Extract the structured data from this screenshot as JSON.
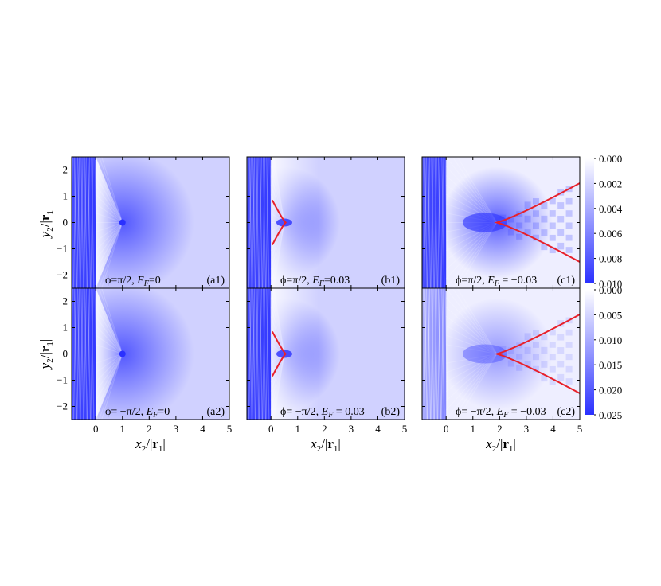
{
  "colormap": {
    "low": "#ffffff",
    "high": "#2a30ff"
  },
  "shared_axes": {
    "x_ticks": [
      "0",
      "1",
      "2",
      "3",
      "4",
      "5"
    ],
    "y_ticks": [
      "-2",
      "-1",
      "0",
      "1",
      "2"
    ]
  },
  "chart_data": [
    {
      "type": "heatmap",
      "id": "a1",
      "panel_label": "(a1)",
      "annotation": {
        "phi": "ϕ=π/2, ",
        "ef_sym": "E",
        "ef_sub": "F",
        "ef_val": "=0"
      },
      "xlim": [
        -0.9,
        5
      ],
      "ylim": [
        -2.5,
        2.5
      ],
      "ylabel": {
        "main": "y",
        "sub": "2",
        "slash": "/|",
        "r": "r",
        "rsub": "1",
        "end": "|"
      },
      "pattern": "focus",
      "focus_point": [
        1,
        0
      ],
      "interface_x": 0,
      "caustic": null
    },
    {
      "type": "heatmap",
      "id": "b1",
      "panel_label": "(b1)",
      "annotation": {
        "phi": "ϕ=π/2, ",
        "ef_sym": "E",
        "ef_sub": "F",
        "ef_val": "=0.03"
      },
      "xlim": [
        -0.9,
        5
      ],
      "ylim": [
        -2.5,
        2.5
      ],
      "pattern": "cusp",
      "focus_point": [
        0.5,
        0
      ],
      "interface_x": 0,
      "caustic": {
        "cusp": [
          0.55,
          0
        ],
        "ends": [
          [
            0.05,
            0.85
          ],
          [
            0.05,
            -0.85
          ]
        ],
        "color": "#e8202a"
      }
    },
    {
      "type": "heatmap",
      "id": "c1",
      "panel_label": "(c1)",
      "annotation": {
        "phi": "ϕ=π/2, ",
        "ef_sym": "E",
        "ef_sub": "F",
        "ef_val": " = −0.03"
      },
      "xlim": [
        -0.9,
        5
      ],
      "ylim": [
        -2.5,
        2.5
      ],
      "pattern": "wedge",
      "focus_point": [
        1.9,
        0
      ],
      "interface_x": 0,
      "caustic": {
        "cusp": [
          1.9,
          0
        ],
        "ends": [
          [
            5,
            1.5
          ],
          [
            5,
            -1.5
          ]
        ],
        "color": "#e8202a"
      },
      "colorbar": {
        "ticks": [
          "0.000",
          "0.002",
          "0.004",
          "0.006",
          "0.008",
          "0.010"
        ],
        "range": [
          0,
          0.01
        ]
      }
    },
    {
      "type": "heatmap",
      "id": "a2",
      "panel_label": "(a2)",
      "annotation": {
        "phi": "ϕ= −π/2, ",
        "ef_sym": "E",
        "ef_sub": "F",
        "ef_val": "=0"
      },
      "xlim": [
        -0.9,
        5
      ],
      "ylim": [
        -2.5,
        2.5
      ],
      "xlabel": {
        "main": "x",
        "sub": "2",
        "slash": "/|",
        "r": "r",
        "rsub": "1",
        "end": "|"
      },
      "ylabel": {
        "main": "y",
        "sub": "2",
        "slash": "/|",
        "r": "r",
        "rsub": "1",
        "end": "|"
      },
      "pattern": "focus",
      "focus_point": [
        1,
        0
      ],
      "interface_x": 0,
      "caustic": null
    },
    {
      "type": "heatmap",
      "id": "b2",
      "panel_label": "(b2)",
      "annotation": {
        "phi": "ϕ= −π/2, ",
        "ef_sym": "E",
        "ef_sub": "F",
        "ef_val": " = 0.03"
      },
      "xlim": [
        -0.9,
        5
      ],
      "ylim": [
        -2.5,
        2.5
      ],
      "xlabel": {
        "main": "x",
        "sub": "2",
        "slash": "/|",
        "r": "r",
        "rsub": "1",
        "end": "|"
      },
      "pattern": "cusp",
      "focus_point": [
        0.5,
        0
      ],
      "interface_x": 0,
      "caustic": {
        "cusp": [
          0.55,
          0
        ],
        "ends": [
          [
            0.05,
            0.85
          ],
          [
            0.05,
            -0.85
          ]
        ],
        "color": "#e8202a"
      }
    },
    {
      "type": "heatmap",
      "id": "c2",
      "panel_label": "(c2)",
      "annotation": {
        "phi": "ϕ= −π/2, ",
        "ef_sym": "E",
        "ef_sub": "F",
        "ef_val": " = −0.03"
      },
      "xlim": [
        -0.9,
        5
      ],
      "ylim": [
        -2.5,
        2.5
      ],
      "xlabel": {
        "main": "x",
        "sub": "2",
        "slash": "/|",
        "r": "r",
        "rsub": "1",
        "end": "|"
      },
      "pattern": "wedge_weak",
      "focus_point": [
        1.9,
        0
      ],
      "interface_x": 0,
      "caustic": {
        "cusp": [
          1.9,
          0
        ],
        "ends": [
          [
            5,
            1.5
          ],
          [
            5,
            -1.5
          ]
        ],
        "color": "#e8202a"
      },
      "colorbar": {
        "ticks": [
          "0.000",
          "0.005",
          "0.010",
          "0.015",
          "0.020",
          "0.025"
        ],
        "range": [
          0,
          0.025
        ]
      }
    }
  ]
}
